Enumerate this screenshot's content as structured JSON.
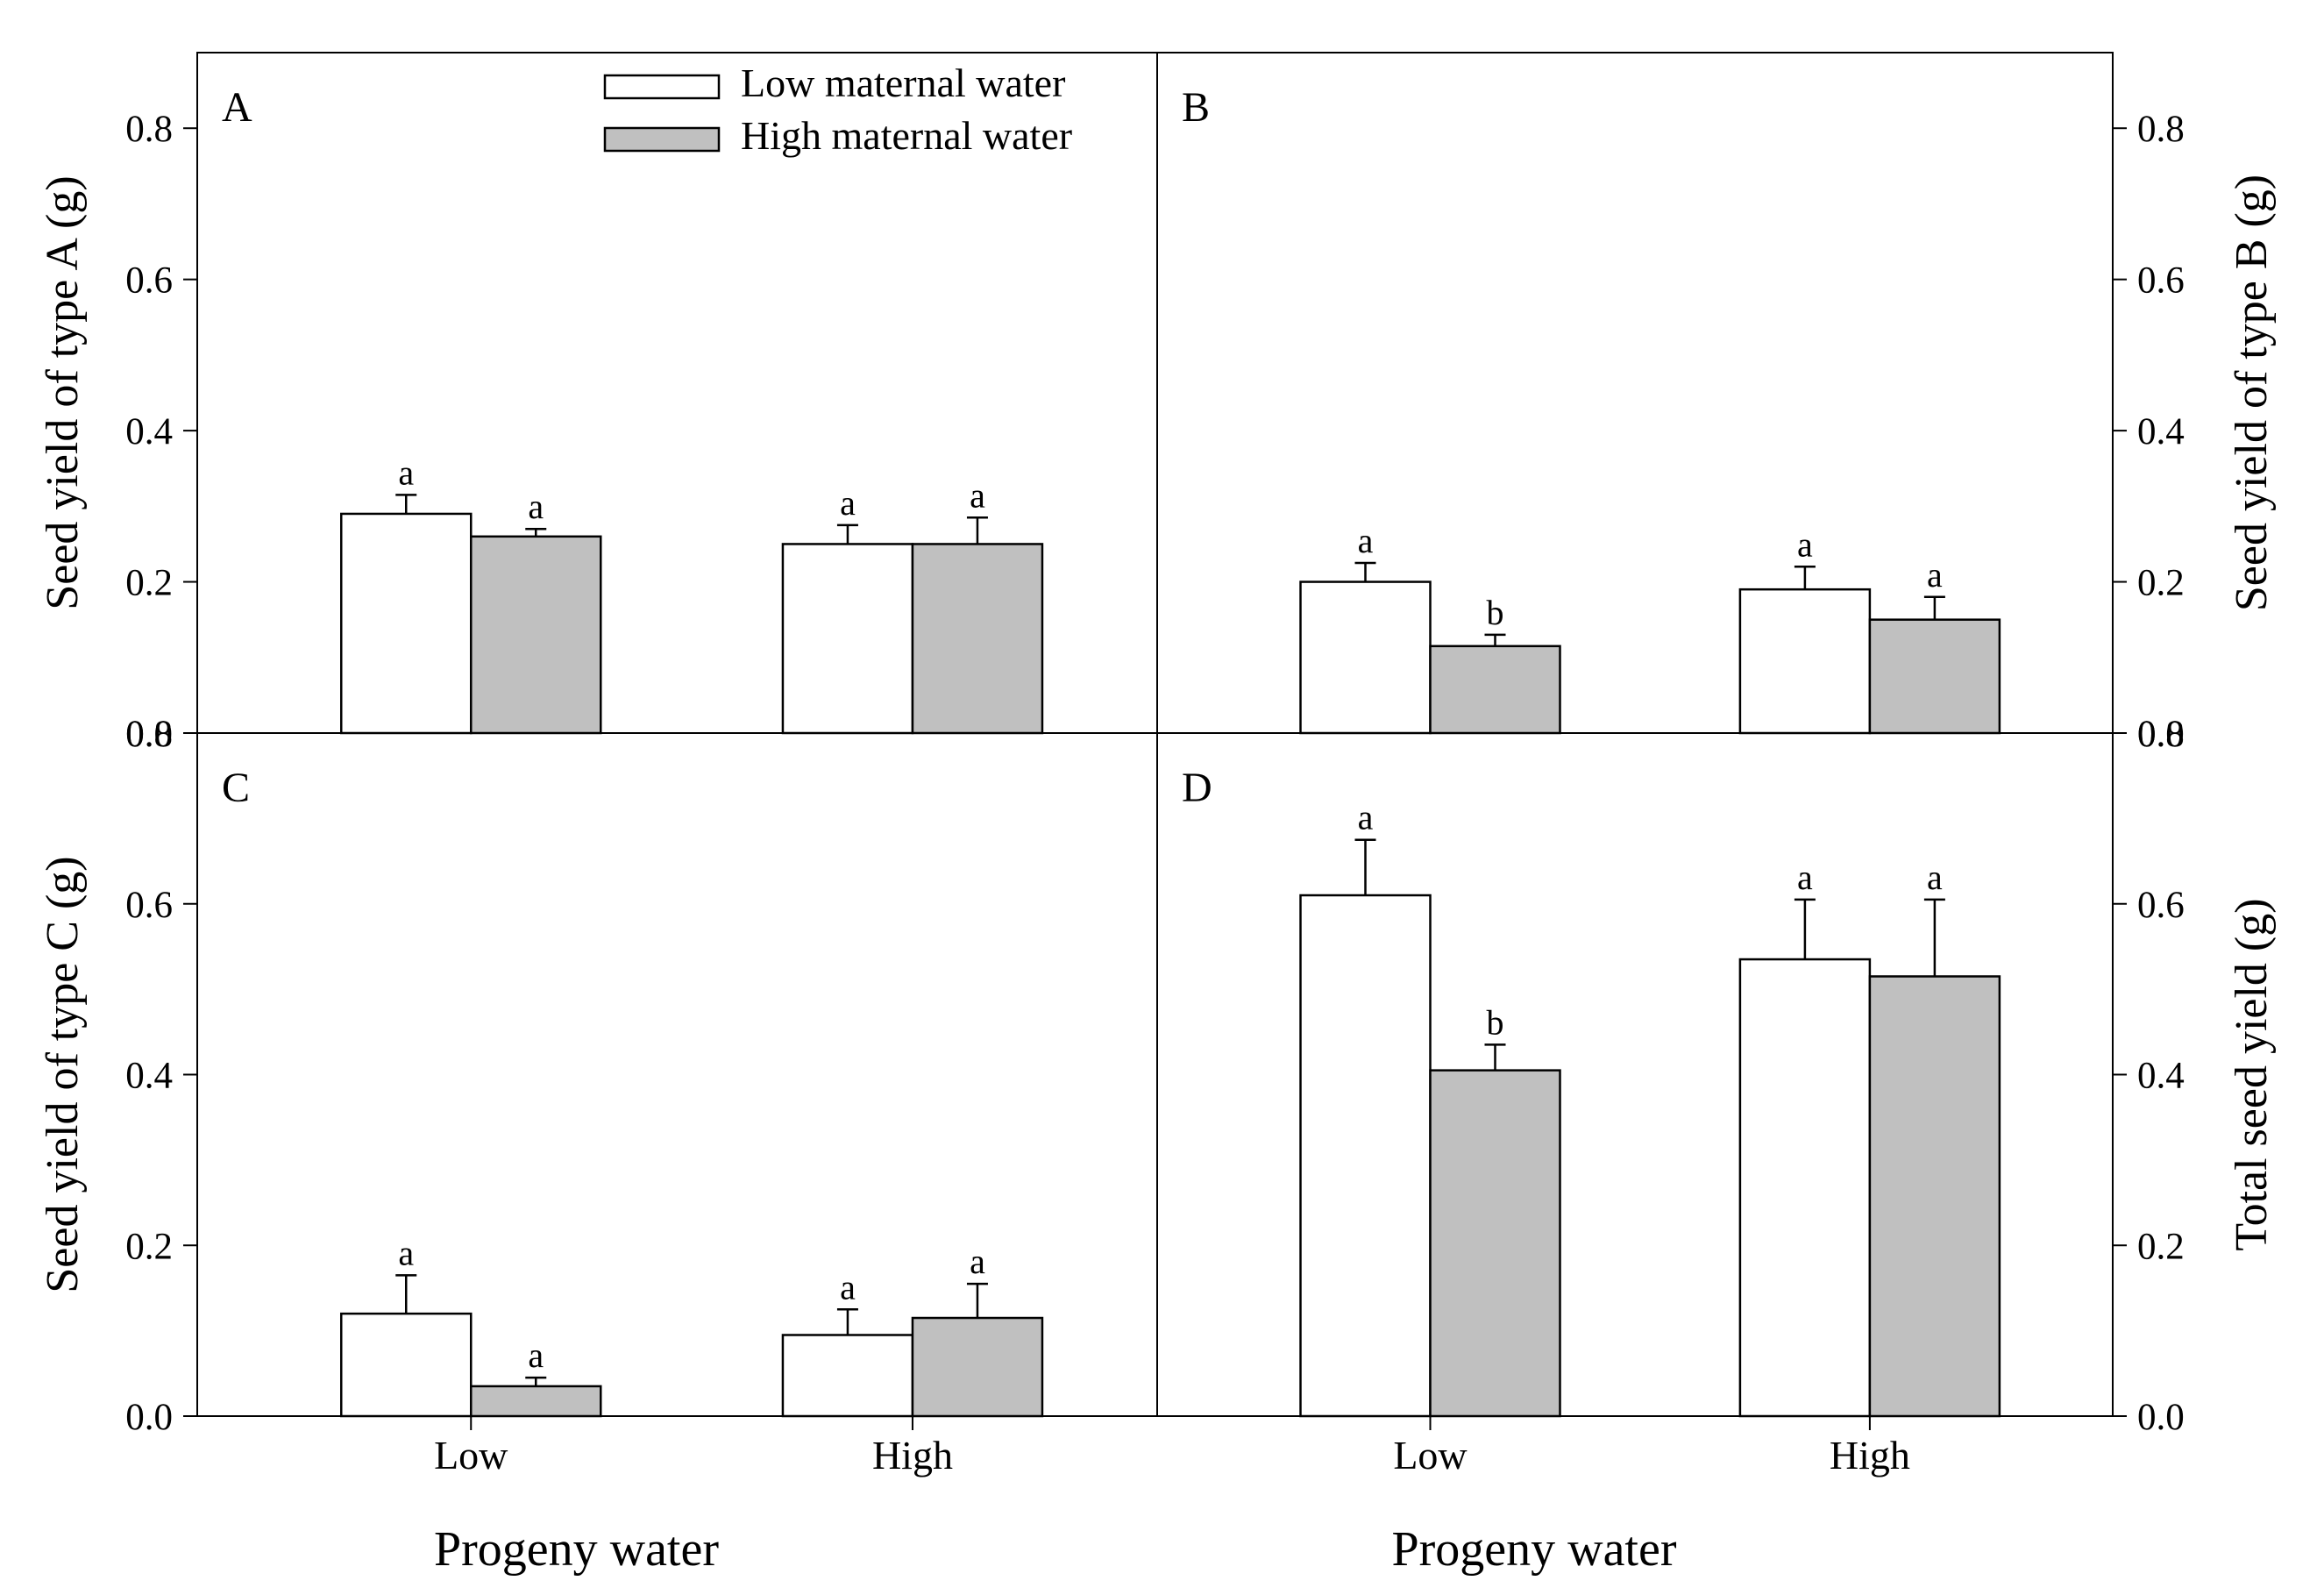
{
  "legend": [
    {
      "label": "Low maternal water",
      "fill": "#ffffff"
    },
    {
      "label": "High maternal water",
      "fill": "#c0c0c0"
    }
  ],
  "chart_data": [
    {
      "type": "bar",
      "panel": "A",
      "ylabel": "Seed yield of  type A (g)",
      "yaxis_side": "left",
      "xlabel": "",
      "categories": [
        "Low",
        "High"
      ],
      "ylim": [
        0,
        0.9
      ],
      "yticks": [
        "0.0",
        "0.2",
        "0.4",
        "0.6",
        "0.8"
      ],
      "show_xticks": false,
      "series": [
        {
          "name": "Low maternal water",
          "values": [
            0.29,
            0.25
          ],
          "errors": [
            0.025,
            0.025
          ],
          "sig": [
            "a",
            "a"
          ]
        },
        {
          "name": "High maternal water",
          "values": [
            0.26,
            0.25
          ],
          "errors": [
            0.01,
            0.035
          ],
          "sig": [
            "a",
            "a"
          ]
        }
      ]
    },
    {
      "type": "bar",
      "panel": "B",
      "ylabel": "Seed yield of   type B (g)",
      "yaxis_side": "right",
      "xlabel": "",
      "categories": [
        "Low",
        "High"
      ],
      "ylim": [
        0,
        0.9
      ],
      "yticks": [
        "0.0",
        "0.2",
        "0.4",
        "0.6",
        "0.8"
      ],
      "show_xticks": false,
      "series": [
        {
          "name": "Low maternal water",
          "values": [
            0.2,
            0.19
          ],
          "errors": [
            0.025,
            0.03
          ],
          "sig": [
            "a",
            "a"
          ]
        },
        {
          "name": "High maternal water",
          "values": [
            0.115,
            0.15
          ],
          "errors": [
            0.015,
            0.03
          ],
          "sig": [
            "b",
            "a"
          ]
        }
      ]
    },
    {
      "type": "bar",
      "panel": "C",
      "ylabel": "Seed yield of  type C (g)",
      "yaxis_side": "left",
      "xlabel": "Progeny water",
      "categories": [
        "Low",
        "High"
      ],
      "ylim": [
        0,
        0.8
      ],
      "yticks": [
        "0.0",
        "0.2",
        "0.4",
        "0.6",
        "0.8"
      ],
      "show_xticks": true,
      "series": [
        {
          "name": "Low maternal water",
          "values": [
            0.12,
            0.095
          ],
          "errors": [
            0.045,
            0.03
          ],
          "sig": [
            "a",
            "a"
          ]
        },
        {
          "name": "High maternal water",
          "values": [
            0.035,
            0.115
          ],
          "errors": [
            0.01,
            0.04
          ],
          "sig": [
            "a",
            "a"
          ]
        }
      ]
    },
    {
      "type": "bar",
      "panel": "D",
      "ylabel": "Total seed yield (g)",
      "yaxis_side": "right",
      "xlabel": "Progeny water",
      "categories": [
        "Low",
        "High"
      ],
      "ylim": [
        0,
        0.8
      ],
      "yticks": [
        "0.0",
        "0.2",
        "0.4",
        "0.6",
        "0.8"
      ],
      "show_xticks": true,
      "series": [
        {
          "name": "Low maternal water",
          "values": [
            0.61,
            0.535
          ],
          "errors": [
            0.065,
            0.07
          ],
          "sig": [
            "a",
            "a"
          ]
        },
        {
          "name": "High maternal water",
          "values": [
            0.405,
            0.515
          ],
          "errors": [
            0.03,
            0.09
          ],
          "sig": [
            "b",
            "a"
          ]
        }
      ]
    }
  ]
}
